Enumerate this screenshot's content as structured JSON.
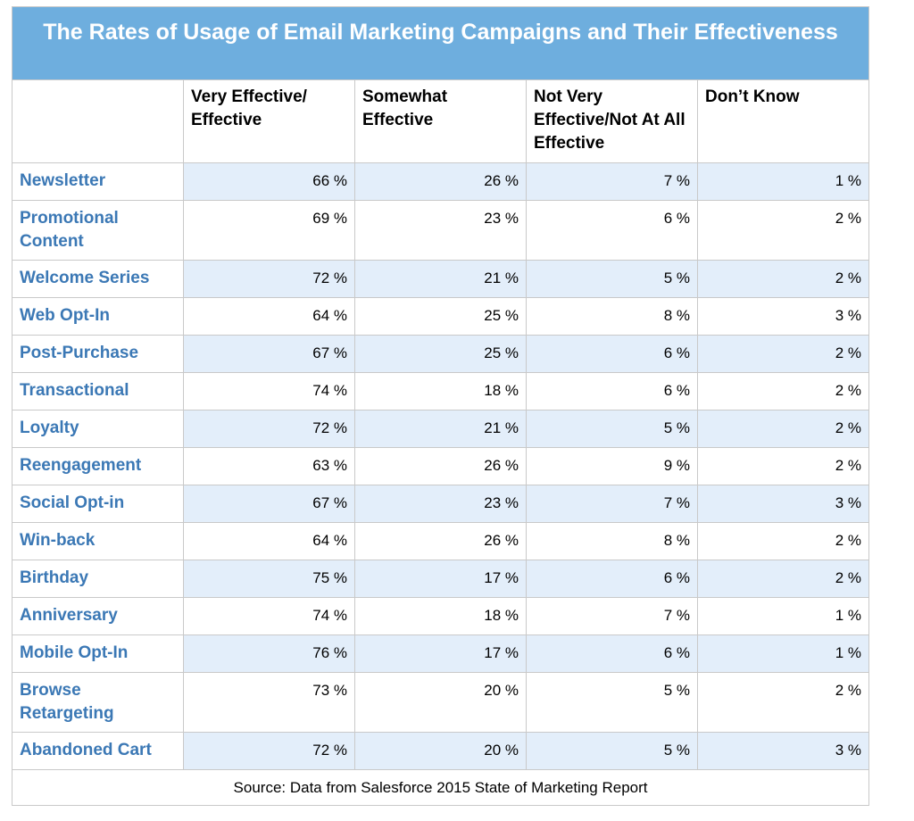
{
  "chart_data": {
    "type": "table",
    "title": "The Rates of Usage of Email Marketing Campaigns and Their Effectiveness",
    "columns": [
      "",
      "Very Effective/ Effective",
      "Somewhat Effective",
      "Not Very Effective/Not At All Effective",
      "Don’t Know"
    ],
    "rows": [
      {
        "label": "Newsletter",
        "values": [
          "66 %",
          "26 %",
          "7 %",
          "1 %"
        ]
      },
      {
        "label": "Promotional Content",
        "values": [
          "69 %",
          "23 %",
          "6 %",
          "2 %"
        ]
      },
      {
        "label": "Welcome Series",
        "values": [
          "72 %",
          "21 %",
          "5 %",
          "2 %"
        ]
      },
      {
        "label": "Web Opt-In",
        "values": [
          "64 %",
          "25 %",
          "8 %",
          "3 %"
        ]
      },
      {
        "label": "Post-Purchase",
        "values": [
          "67 %",
          "25 %",
          "6 %",
          "2 %"
        ]
      },
      {
        "label": "Transactional",
        "values": [
          "74 %",
          "18 %",
          "6 %",
          "2 %"
        ]
      },
      {
        "label": "Loyalty",
        "values": [
          "72 %",
          "21 %",
          "5 %",
          "2 %"
        ]
      },
      {
        "label": "Reengagement",
        "values": [
          "63 %",
          "26 %",
          "9 %",
          "2 %"
        ]
      },
      {
        "label": "Social Opt-in",
        "values": [
          "67 %",
          "23 %",
          "7 %",
          "3 %"
        ]
      },
      {
        "label": "Win-back",
        "values": [
          "64 %",
          "26 %",
          "8 %",
          "2 %"
        ]
      },
      {
        "label": "Birthday",
        "values": [
          "75 %",
          "17 %",
          "6 %",
          "2 %"
        ]
      },
      {
        "label": "Anniversary",
        "values": [
          "74 %",
          "18 %",
          "7 %",
          "1 %"
        ]
      },
      {
        "label": "Mobile Opt-In",
        "values": [
          "76 %",
          "17 %",
          "6 %",
          "1 %"
        ]
      },
      {
        "label": "Browse Retargeting",
        "values": [
          "73 %",
          "20 %",
          "5 %",
          "2 %"
        ]
      },
      {
        "label": "Abandoned Cart",
        "values": [
          "72 %",
          "20 %",
          "5 %",
          "3 %"
        ]
      }
    ],
    "source": "Source: Data from Salesforce 2015 State of Marketing Report"
  },
  "colors": {
    "title_background": "#6eaede",
    "title_text": "#ffffff",
    "row_label_text": "#3b78b5",
    "shaded_row_background": "#e3eefa",
    "grid_lines": "#c9c9c9"
  }
}
